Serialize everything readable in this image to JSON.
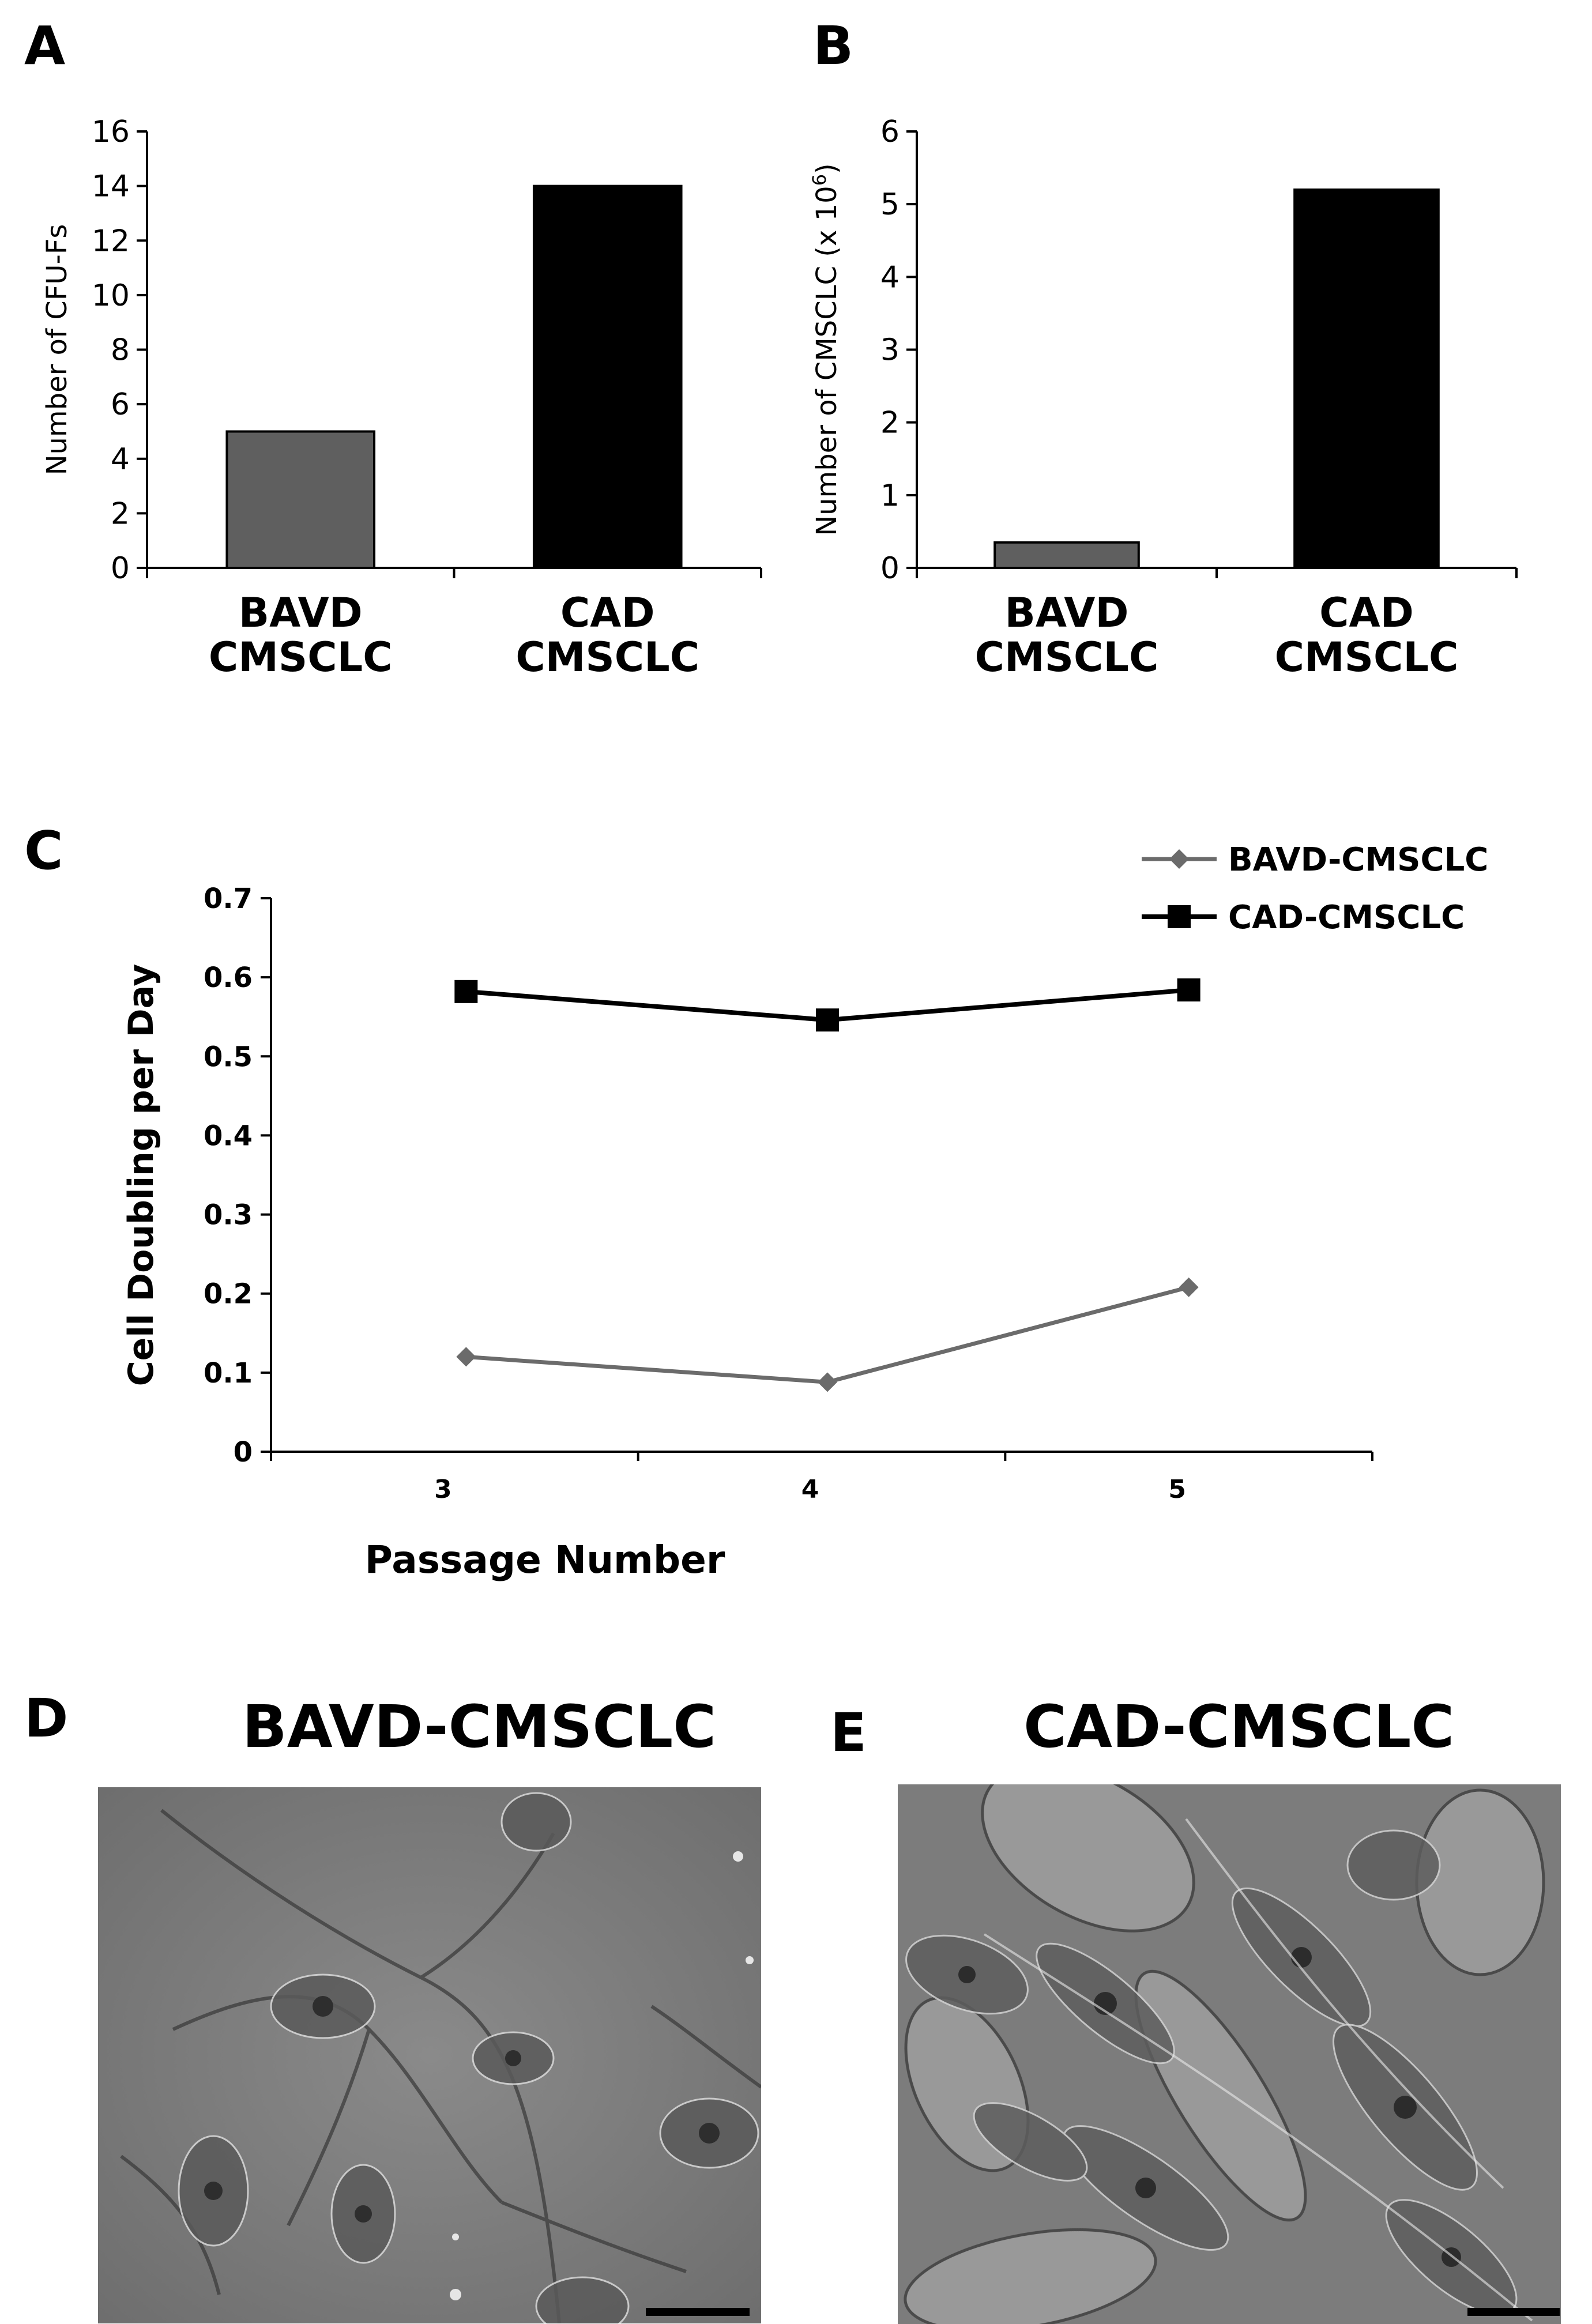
{
  "panels": {
    "a": {
      "letter": "A"
    },
    "b": {
      "letter": "B"
    },
    "c": {
      "letter": "C"
    },
    "d": {
      "letter": "D",
      "title": "BAVD-CMSCLC"
    },
    "e": {
      "letter": "E",
      "title": "CAD-CMSCLC"
    }
  },
  "colors": {
    "bavd_bar": "#5f5f5f",
    "cad_bar": "#000000",
    "bavd_line": "#6b6b6b",
    "cad_line": "#000000"
  },
  "chart_data": [
    {
      "type": "bar",
      "panel": "A",
      "categories": [
        "BAVD\nCMSCLC",
        "CAD\nCMSCLC"
      ],
      "values": [
        5,
        14
      ],
      "ylabel": "Number of CFU-Fs",
      "ylim": [
        0,
        16
      ],
      "yticks": [
        "0",
        "2",
        "4",
        "6",
        "8",
        "10",
        "12",
        "14",
        "16"
      ],
      "grid": false
    },
    {
      "type": "bar",
      "panel": "B",
      "categories": [
        "BAVD\nCMSCLC",
        "CAD\nCMSCLC"
      ],
      "values": [
        0.35,
        5.2
      ],
      "ylabel": "Number of CMSCLC (x 10",
      "ylabel_sup": "6",
      "ylabel_end": ")",
      "ylim": [
        0,
        6
      ],
      "yticks": [
        "0",
        "1",
        "2",
        "3",
        "4",
        "5",
        "6"
      ],
      "grid": false
    },
    {
      "type": "line",
      "panel": "C",
      "x": [
        3,
        4,
        5
      ],
      "xticks": [
        "3",
        "4",
        "5"
      ],
      "series": [
        {
          "name": "BAVD-CMSCLC",
          "values": [
            0.12,
            0.088,
            0.208
          ],
          "marker": "diamond"
        },
        {
          "name": "CAD-CMSCLC",
          "values": [
            0.582,
            0.546,
            0.584
          ],
          "marker": "square"
        }
      ],
      "xlabel": "Passage Number",
      "ylabel": "Cell Doubling per Day",
      "ylim": [
        0,
        0.7
      ],
      "yticks": [
        "0",
        "0.1",
        "0.2",
        "0.3",
        "0.4",
        "0.5",
        "0.6",
        "0.7"
      ],
      "legend": "top-right",
      "grid": false
    }
  ]
}
